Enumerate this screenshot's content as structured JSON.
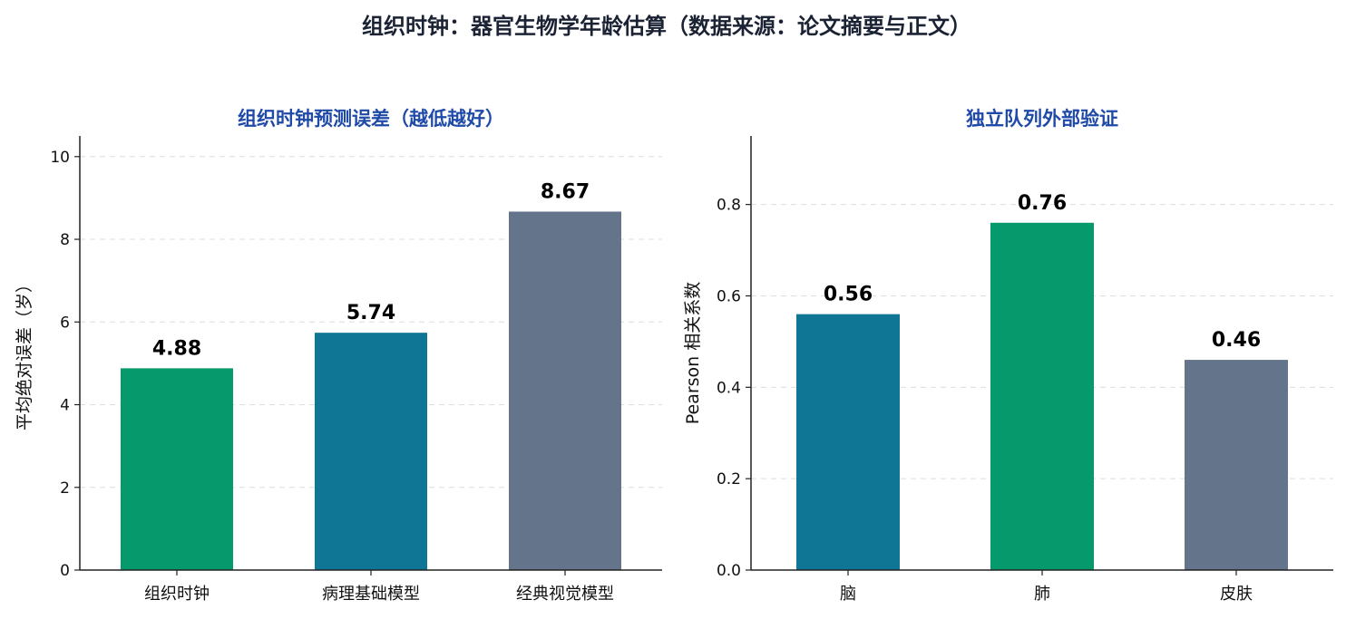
{
  "figure": {
    "suptitle": "组织时钟：器官生物学年龄估算（数据来源：论文摘要与正文）"
  },
  "chart_data": [
    {
      "type": "bar",
      "title": "组织时钟预测误差（越低越好）",
      "xlabel": "",
      "ylabel": "平均绝对误差（岁）",
      "categories": [
        "组织时钟",
        "病理基础模型",
        "经典视觉模型"
      ],
      "values": [
        4.88,
        5.74,
        8.67
      ],
      "value_labels": [
        "4.88",
        "5.74",
        "8.67"
      ],
      "colors": [
        "#06996b",
        "#107695",
        "#64748b"
      ],
      "ylim": [
        0,
        10.5
      ],
      "yticks": [
        0,
        2,
        4,
        6,
        8,
        10
      ],
      "ytick_labels": [
        "0",
        "2",
        "4",
        "6",
        "8",
        "10"
      ],
      "grid": "horizontal-dashed",
      "legend": "none"
    },
    {
      "type": "bar",
      "title": "独立队列外部验证",
      "xlabel": "",
      "ylabel": "Pearson 相关系数",
      "categories": [
        "脑",
        "肺",
        "皮肤"
      ],
      "values": [
        0.56,
        0.76,
        0.46
      ],
      "value_labels": [
        "0.56",
        "0.76",
        "0.46"
      ],
      "colors": [
        "#107695",
        "#06996b",
        "#64748b"
      ],
      "ylim": [
        0,
        0.95
      ],
      "yticks": [
        0.0,
        0.2,
        0.4,
        0.6,
        0.8
      ],
      "ytick_labels": [
        "0.0",
        "0.2",
        "0.4",
        "0.6",
        "0.8"
      ],
      "grid": "horizontal-dashed",
      "legend": "none"
    }
  ]
}
